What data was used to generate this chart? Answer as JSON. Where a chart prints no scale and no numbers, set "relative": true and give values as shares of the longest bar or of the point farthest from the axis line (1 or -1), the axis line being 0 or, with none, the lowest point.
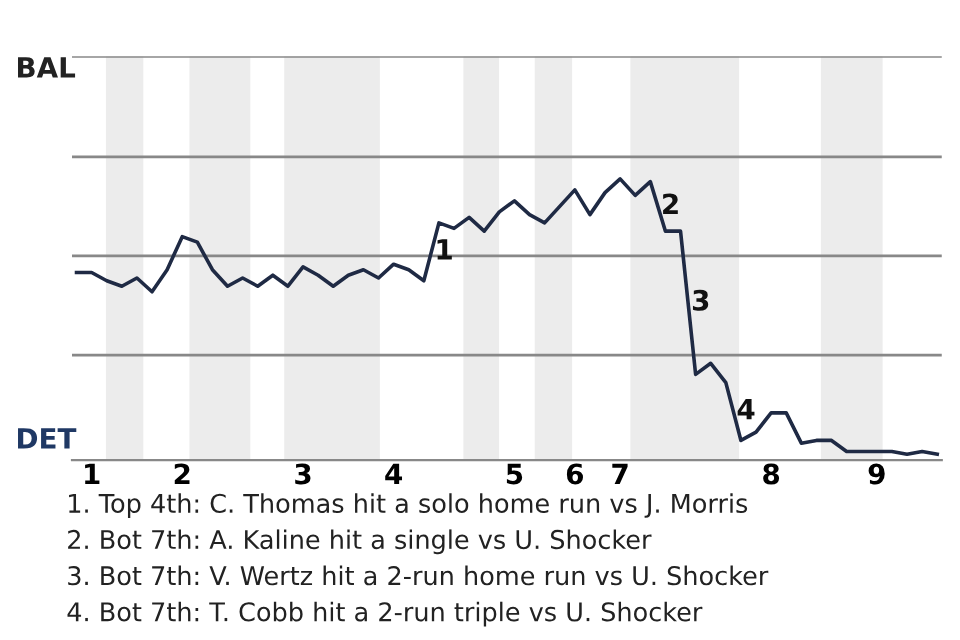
{
  "chart_data": {
    "type": "line",
    "relative": true,
    "categories": [
      null,
      "1",
      null,
      null,
      null,
      null,
      null,
      "2",
      null,
      null,
      null,
      null,
      null,
      null,
      null,
      "3",
      null,
      null,
      null,
      null,
      null,
      "4",
      null,
      null,
      null,
      null,
      null,
      null,
      null,
      "5",
      null,
      null,
      null,
      "6",
      null,
      null,
      "7",
      null,
      null,
      null,
      null,
      null,
      null,
      null,
      null,
      null,
      "8",
      null,
      null,
      null,
      null,
      null,
      null,
      "9",
      null,
      null,
      null,
      null
    ],
    "series": [
      {
        "color": "#1f2a44",
        "values": [
          0.66,
          0.66,
          0.63,
          0.61,
          0.64,
          0.59,
          0.67,
          0.79,
          0.77,
          0.67,
          0.61,
          0.64,
          0.61,
          0.65,
          0.61,
          0.68,
          0.65,
          0.61,
          0.65,
          0.67,
          0.64,
          0.69,
          0.67,
          0.63,
          0.84,
          0.82,
          0.86,
          0.81,
          0.88,
          0.92,
          0.87,
          0.84,
          0.9,
          0.96,
          0.87,
          0.95,
          1,
          0.94,
          0.99,
          0.81,
          0.81,
          0.29,
          0.33,
          0.26,
          0.05,
          0.08,
          0.15,
          0.15,
          0.04,
          0.05,
          0.05,
          0.01,
          0.01,
          0.01,
          0.01,
          0,
          0.01,
          0
        ]
      }
    ],
    "ref_lines": [
      {
        "axis": "y",
        "value": 0.36,
        "color": "#888888"
      },
      {
        "axis": "y",
        "value": 0.72,
        "color": "#888888"
      },
      {
        "axis": "y",
        "value": 1.08,
        "color": "#888888"
      },
      {
        "axis": "y",
        "value": 1.445,
        "color": "#888888"
      }
    ],
    "marker": "none",
    "line_style": "solid",
    "annotations": [
      "BAL",
      "DET",
      "1",
      "2",
      "3",
      "4",
      "1. Top 4th: C. Thomas hit a solo home run vs J. Morris",
      "2. Bot 7th: A. Kaline hit a single vs U. Shocker",
      "3. Bot 7th: V. Wertz hit a 2-run home run vs U. Shocker",
      "4. Bot 7th: T. Cobb hit a 2-run triple vs U. Shocker"
    ]
  }
}
